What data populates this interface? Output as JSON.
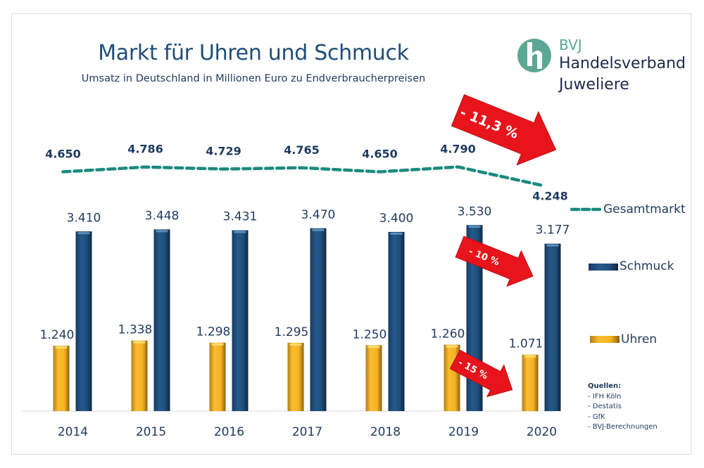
{
  "header": {
    "title": "Markt für Uhren und Schmuck",
    "subtitle": "Umsatz in Deutschland in Millionen Euro zu Endverbraucherpreisen"
  },
  "logo": {
    "icon": "bvj-h-logo-icon",
    "line1": "BVJ",
    "line2": "Handelsverband",
    "line3": "Juweliere",
    "brand_color": "#5aa894"
  },
  "sources": {
    "heading": "Quellen:",
    "items": [
      "- IFH Köln",
      "- Destatis",
      "- GfK",
      "- BVJ-Berechnungen"
    ]
  },
  "chart_data": {
    "type": "bar",
    "title": "Markt für Uhren und Schmuck",
    "subtitle": "Umsatz in Deutschland in Millionen Euro zu Endverbraucherpreisen",
    "xlabel": "",
    "ylabel": "",
    "categories": [
      "2014",
      "2015",
      "2016",
      "2017",
      "2018",
      "2019",
      "2020"
    ],
    "series": [
      {
        "name": "Uhren",
        "kind": "bar",
        "color": "#f5b323",
        "values": [
          1240,
          1338,
          1298,
          1295,
          1250,
          1260,
          1071
        ],
        "labels": [
          "1.240",
          "1.338",
          "1.298",
          "1.295",
          "1.250",
          "1.260",
          "1.071"
        ]
      },
      {
        "name": "Schmuck",
        "kind": "bar",
        "color": "#1f4e79",
        "values": [
          3410,
          3448,
          3431,
          3470,
          3400,
          3530,
          3177
        ],
        "labels": [
          "3.410",
          "3.448",
          "3.431",
          "3.470",
          "3.400",
          "3.530",
          "3.177"
        ]
      },
      {
        "name": "Gesamtmarkt",
        "kind": "line-dashed",
        "color": "#1a8a7e",
        "values": [
          4650,
          4786,
          4729,
          4765,
          4650,
          4790,
          4248
        ],
        "labels": [
          "4.650",
          "4.786",
          "4.729",
          "4.765",
          "4.650",
          "4.790",
          "4.248"
        ]
      }
    ],
    "bar_ylim": [
      0,
      3800
    ],
    "line_ylim": [
      4000,
      4900
    ],
    "grid": false,
    "legend": {
      "position": "right",
      "entries": [
        "Gesamtmarkt",
        "Schmuck",
        "Uhren"
      ]
    },
    "annotations": [
      {
        "text": "- 11,3 %",
        "target": "Gesamtmarkt",
        "from": "2019",
        "to": "2020",
        "color": "#e8141b"
      },
      {
        "text": "- 10 %",
        "target": "Schmuck",
        "from": "2019",
        "to": "2020",
        "color": "#e8141b"
      },
      {
        "text": "- 15 %",
        "target": "Uhren",
        "from": "2019",
        "to": "2020",
        "color": "#e8141b"
      }
    ]
  }
}
